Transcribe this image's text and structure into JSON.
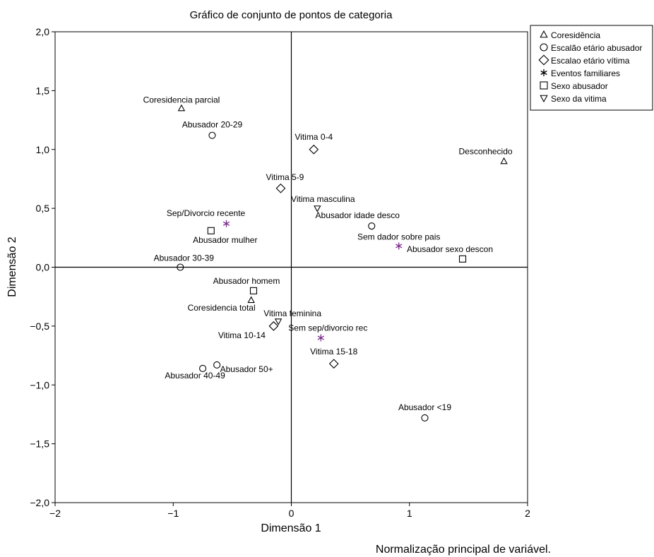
{
  "chart_data": {
    "type": "scatter",
    "title": "Gráfico de conjunto de pontos de categoria",
    "xlabel": "Dimensão 1",
    "ylabel": "Dimensão 2",
    "xlim": [
      -2,
      2
    ],
    "ylim": [
      -2,
      2
    ],
    "xticks": [
      "−2",
      "−1",
      "0",
      "1",
      "2"
    ],
    "yticks": [
      "−2,0",
      "−1,5",
      "−1,0",
      "−0,5",
      "0,0",
      "0,5",
      "1,0",
      "1,5",
      "2,0"
    ],
    "grid": false,
    "reference_lines": {
      "x": 0,
      "y": 0
    },
    "legend_position": "top-right-outside",
    "footnote": "Normalização principal de variável.",
    "series": [
      {
        "name": "Coresidência",
        "marker": "triangle-up",
        "color": "#000000",
        "points": [
          {
            "label": "Coresidencia parcial",
            "x": -0.93,
            "y": 1.35
          },
          {
            "label": "Desconhecido",
            "x": 1.8,
            "y": 0.9
          },
          {
            "label": "Coresidencia total",
            "x": -0.34,
            "y": -0.28
          }
        ]
      },
      {
        "name": "Escalão etário abusador",
        "marker": "circle",
        "color": "#000000",
        "points": [
          {
            "label": "Abusador 20-29",
            "x": -0.67,
            "y": 1.12
          },
          {
            "label": "Abusador idade desco",
            "x": 0.68,
            "y": 0.35
          },
          {
            "label": "Abusador 30-39",
            "x": -0.94,
            "y": 0.0
          },
          {
            "label": "Abusador 40-49",
            "x": -0.75,
            "y": -0.86
          },
          {
            "label": "Abusador 50+",
            "x": -0.63,
            "y": -0.83
          },
          {
            "label": "Abusador <19",
            "x": 1.13,
            "y": -1.28
          }
        ]
      },
      {
        "name": "Escalao etário vítima",
        "marker": "diamond",
        "color": "#000000",
        "points": [
          {
            "label": "Vitima 0-4",
            "x": 0.19,
            "y": 1.0
          },
          {
            "label": "Vitima 5-9",
            "x": -0.09,
            "y": 0.67
          },
          {
            "label": "Vitima 10-14",
            "x": -0.15,
            "y": -0.5
          },
          {
            "label": "Vitima 15-18",
            "x": 0.36,
            "y": -0.82
          }
        ]
      },
      {
        "name": "Eventos familiares",
        "marker": "star",
        "color": "#7a2a8a",
        "points": [
          {
            "label": "Sep/Divorcio recente",
            "x": -0.55,
            "y": 0.37
          },
          {
            "label": "Sem dador sobre pais",
            "x": 0.91,
            "y": 0.18
          },
          {
            "label": "Sem sep/divorcio rec",
            "x": 0.25,
            "y": -0.6
          }
        ]
      },
      {
        "name": "Sexo abusador",
        "marker": "square",
        "color": "#000000",
        "points": [
          {
            "label": "Abusador mulher",
            "x": -0.68,
            "y": 0.31
          },
          {
            "label": "Abusador sexo descon",
            "x": 1.45,
            "y": 0.07
          },
          {
            "label": "Abusador homem",
            "x": -0.32,
            "y": -0.2
          }
        ]
      },
      {
        "name": "Sexo da vitima",
        "marker": "triangle-down",
        "color": "#000000",
        "points": [
          {
            "label": "Vitima masculina",
            "x": 0.22,
            "y": 0.5
          },
          {
            "label": "Vitima feminina",
            "x": -0.11,
            "y": -0.46
          }
        ]
      }
    ]
  }
}
